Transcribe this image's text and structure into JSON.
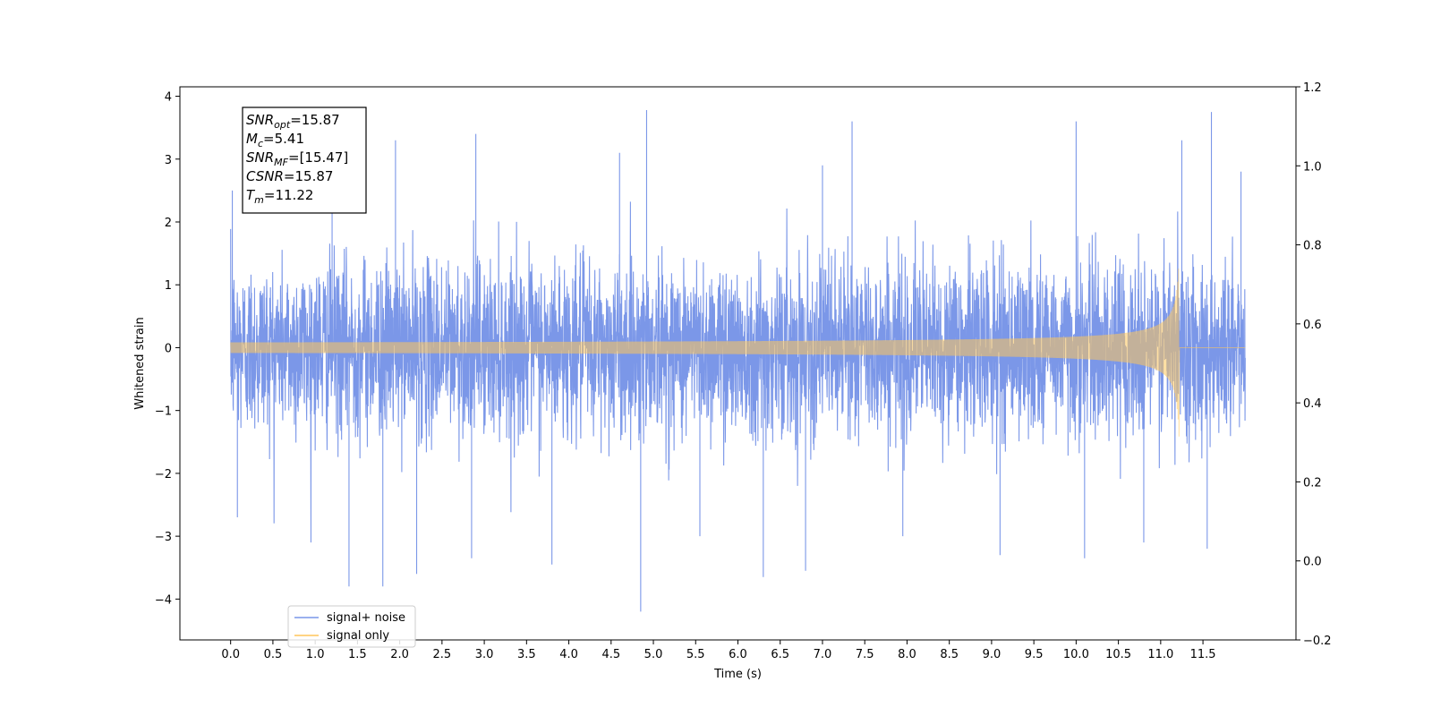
{
  "chart_data": {
    "type": "line",
    "xlabel": "Time (s)",
    "ylabel": "Whitened strain",
    "xlim": [
      -0.6,
      12.6
    ],
    "ylim": [
      -4.65,
      4.15
    ],
    "y2lim": [
      -0.2,
      1.2
    ],
    "x_ticks": [
      0.0,
      0.5,
      1.0,
      1.5,
      2.0,
      2.5,
      3.0,
      3.5,
      4.0,
      4.5,
      5.0,
      5.5,
      6.0,
      6.5,
      7.0,
      7.5,
      8.0,
      8.5,
      9.0,
      9.5,
      10.0,
      10.5,
      11.0,
      11.5
    ],
    "x_tick_labels": [
      "0.0",
      "0.5",
      "1.0",
      "1.5",
      "2.0",
      "2.5",
      "3.0",
      "3.5",
      "4.0",
      "4.5",
      "5.0",
      "5.5",
      "6.0",
      "6.5",
      "7.0",
      "7.5",
      "8.0",
      "8.5",
      "9.0",
      "9.5",
      "10.0",
      "10.5",
      "11.0",
      "11.5"
    ],
    "y_ticks": [
      4,
      3,
      2,
      1,
      0,
      -1,
      -2,
      -3,
      -4
    ],
    "y_tick_labels": [
      "4",
      "3",
      "2",
      "1",
      "0",
      "−1",
      "−2",
      "−3",
      "−4"
    ],
    "y2_ticks": [
      1.2,
      1.0,
      0.8,
      0.6,
      0.4,
      0.2,
      0.0,
      -0.2
    ],
    "y2_tick_labels": [
      "1.2",
      "1.0",
      "0.8",
      "0.6",
      "0.4",
      "0.2",
      "0.0",
      "−0.2"
    ],
    "series": [
      {
        "name": "signal+ noise",
        "color": "#7895e8",
        "x_range": [
          0.0,
          12.0
        ],
        "envelope_typical": [
          -1.3,
          1.3
        ],
        "peaks": [
          {
            "x": 0.02,
            "y": 2.5
          },
          {
            "x": 0.08,
            "y": -2.7
          },
          {
            "x": 0.95,
            "y": -3.1
          },
          {
            "x": 1.2,
            "y": 3.0
          },
          {
            "x": 1.4,
            "y": -3.8
          },
          {
            "x": 1.8,
            "y": -3.8
          },
          {
            "x": 1.95,
            "y": 3.3
          },
          {
            "x": 2.2,
            "y": -3.6
          },
          {
            "x": 2.9,
            "y": 3.4
          },
          {
            "x": 2.85,
            "y": -3.35
          },
          {
            "x": 3.8,
            "y": -3.45
          },
          {
            "x": 4.6,
            "y": 3.1
          },
          {
            "x": 4.85,
            "y": -4.2
          },
          {
            "x": 4.92,
            "y": 3.78
          },
          {
            "x": 5.55,
            "y": -3.0
          },
          {
            "x": 6.3,
            "y": -3.65
          },
          {
            "x": 6.8,
            "y": -3.55
          },
          {
            "x": 7.0,
            "y": 2.9
          },
          {
            "x": 7.35,
            "y": 3.6
          },
          {
            "x": 7.95,
            "y": -3.0
          },
          {
            "x": 9.1,
            "y": -3.3
          },
          {
            "x": 10.0,
            "y": 3.6
          },
          {
            "x": 10.1,
            "y": -3.35
          },
          {
            "x": 10.8,
            "y": -3.1
          },
          {
            "x": 11.25,
            "y": 3.3
          },
          {
            "x": 11.6,
            "y": 3.75
          },
          {
            "x": 11.55,
            "y": -3.2
          },
          {
            "x": 11.95,
            "y": 2.8
          }
        ]
      },
      {
        "name": "signal only",
        "color": "#ffc65a",
        "x_range": [
          0.0,
          12.0
        ],
        "merger_time": 11.22,
        "peak_amplitude": 1.55,
        "start_amplitude": 0.05
      }
    ],
    "annotation_box": {
      "lines": [
        {
          "name": "SNR",
          "sub": "opt",
          "value": "=15.87"
        },
        {
          "name": "M",
          "sub": "c",
          "value": "=5.41"
        },
        {
          "name": "SNR",
          "sub": "MF",
          "value": "=[15.47]"
        },
        {
          "name": "CSNR",
          "sub": "",
          "value": "=15.87"
        },
        {
          "name": "T",
          "sub": "m",
          "value": "=11.22"
        }
      ]
    },
    "legend_position": "lower-left",
    "grid": false
  }
}
